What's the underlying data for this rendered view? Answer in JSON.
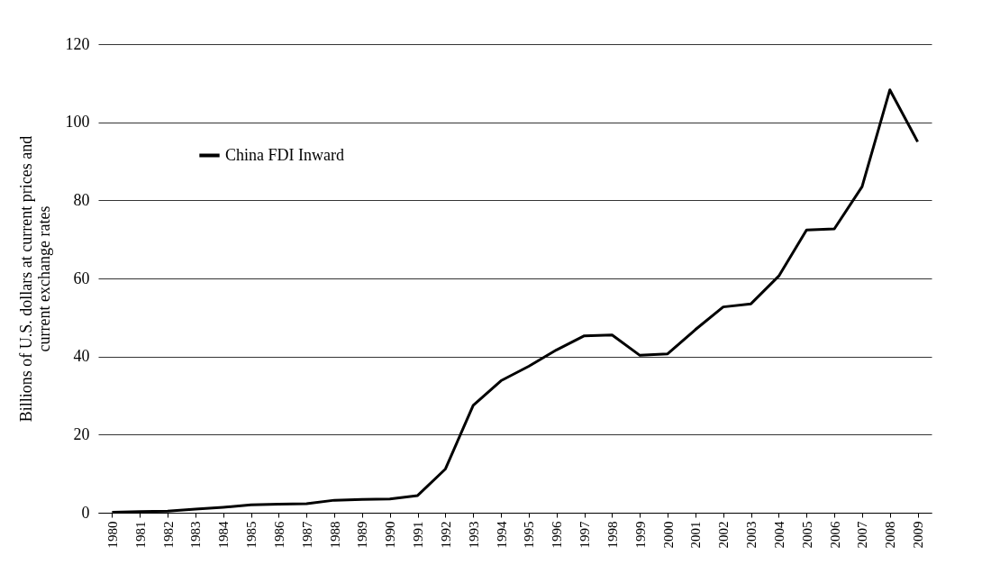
{
  "chart_data": {
    "type": "line",
    "ylabel": "Billions of  U.S. dollars at current prices and\ncurrent exchange rates",
    "categories": [
      "1980",
      "1981",
      "1982",
      "1983",
      "1984",
      "1985",
      "1986",
      "1987",
      "1988",
      "1989",
      "1990",
      "1991",
      "1992",
      "1993",
      "1994",
      "1995",
      "1996",
      "1997",
      "1998",
      "1999",
      "2000",
      "2001",
      "2002",
      "2003",
      "2004",
      "2005",
      "2006",
      "2007",
      "2008",
      "2009"
    ],
    "series": [
      {
        "name": "China FDI Inward",
        "color": "#000000",
        "values": [
          0.1,
          0.3,
          0.4,
          0.9,
          1.4,
          2.0,
          2.2,
          2.3,
          3.2,
          3.4,
          3.5,
          4.4,
          11.2,
          27.5,
          33.8,
          37.5,
          41.7,
          45.3,
          45.5,
          40.3,
          40.7,
          46.9,
          52.7,
          53.5,
          60.6,
          72.4,
          72.7,
          83.5,
          108.3,
          95.0
        ]
      }
    ],
    "ylim": [
      0,
      120
    ],
    "yticks": [
      0,
      20,
      40,
      60,
      80,
      100,
      120
    ],
    "grid": "y",
    "legend": "top left",
    "marker": "none",
    "line_style": "solid"
  }
}
